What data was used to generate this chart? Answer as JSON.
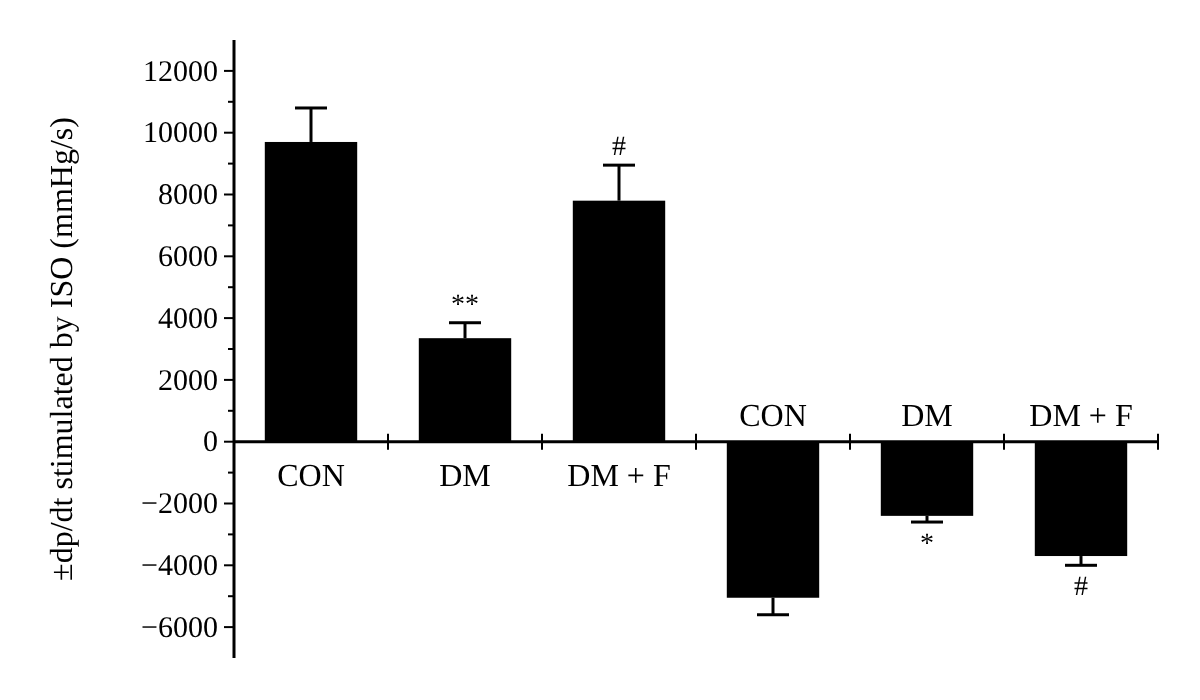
{
  "chart_data": {
    "type": "bar",
    "ylabel": "±dp/dt stimulated by ISO (mmHg/s)",
    "categories": [
      "CON",
      "DM",
      "DM + F",
      "CON",
      "DM",
      "DM + F"
    ],
    "values": [
      9700,
      3350,
      7800,
      -5050,
      -2400,
      -3700
    ],
    "errors": [
      1100,
      500,
      1150,
      550,
      200,
      300
    ],
    "color": "#000000",
    "ylim": [
      -7000,
      13000
    ],
    "yticks": [
      -6000,
      -4000,
      -2000,
      0,
      2000,
      4000,
      6000,
      8000,
      10000,
      12000
    ],
    "grid": false,
    "annotations": [
      "**",
      "#",
      "*",
      "#"
    ]
  }
}
